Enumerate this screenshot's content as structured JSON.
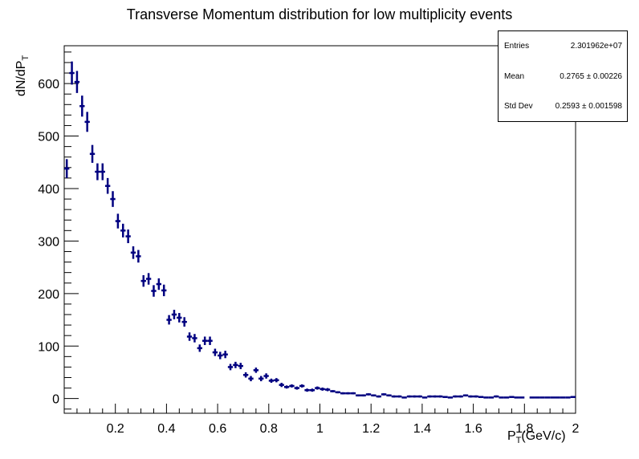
{
  "chart_data": {
    "type": "histogram",
    "title": "Transverse Momentum distribution for low multiplicity events",
    "xlabel": {
      "prefix": "P",
      "sub": "T",
      "suffix": "(GeV/c)"
    },
    "ylabel": {
      "prefix": "dN/dP",
      "sub": "T"
    },
    "xlim": [
      0,
      2.0
    ],
    "ylim": [
      -28,
      672
    ],
    "xticks": [
      0.2,
      0.4,
      0.6,
      0.8,
      1.0,
      1.2,
      1.4,
      1.6,
      1.8,
      2.0
    ],
    "xtick_labels": [
      "0.2",
      "0.4",
      "0.6",
      "0.8",
      "1",
      "1.2",
      "1.4",
      "1.6",
      "1.8",
      "2"
    ],
    "yticks": [
      0,
      100,
      200,
      300,
      400,
      500,
      600
    ],
    "ytick_labels": [
      "0",
      "100",
      "200",
      "300",
      "400",
      "500",
      "600"
    ],
    "bin_width": 0.02,
    "x": [
      0.01,
      0.03,
      0.05,
      0.07,
      0.09,
      0.11,
      0.13,
      0.15,
      0.17,
      0.19,
      0.21,
      0.23,
      0.25,
      0.27,
      0.29,
      0.31,
      0.33,
      0.35,
      0.37,
      0.39,
      0.41,
      0.43,
      0.45,
      0.47,
      0.49,
      0.51,
      0.53,
      0.55,
      0.57,
      0.59,
      0.61,
      0.63,
      0.65,
      0.67,
      0.69,
      0.71,
      0.73,
      0.75,
      0.77,
      0.79,
      0.81,
      0.83,
      0.85,
      0.87,
      0.89,
      0.91,
      0.93,
      0.95,
      0.97,
      0.99,
      1.01,
      1.03,
      1.05,
      1.07,
      1.09,
      1.11,
      1.13,
      1.15,
      1.17,
      1.19,
      1.21,
      1.23,
      1.25,
      1.27,
      1.29,
      1.31,
      1.33,
      1.35,
      1.37,
      1.39,
      1.41,
      1.43,
      1.45,
      1.47,
      1.49,
      1.51,
      1.53,
      1.55,
      1.57,
      1.59,
      1.61,
      1.63,
      1.65,
      1.67,
      1.69,
      1.71,
      1.73,
      1.75,
      1.77,
      1.79,
      1.81,
      1.83,
      1.85,
      1.87,
      1.89,
      1.91,
      1.93,
      1.95,
      1.97,
      1.99
    ],
    "values": [
      438,
      620,
      603,
      557,
      527,
      466,
      432,
      432,
      405,
      380,
      338,
      320,
      309,
      278,
      271,
      224,
      228,
      205,
      218,
      206,
      150,
      160,
      154,
      146,
      118,
      115,
      96,
      110,
      110,
      88,
      82,
      84,
      60,
      64,
      62,
      45,
      38,
      54,
      38,
      43,
      34,
      35,
      26,
      22,
      24,
      20,
      24,
      16,
      16,
      20,
      18,
      17,
      14,
      12,
      10,
      10,
      10,
      6,
      6,
      8,
      6,
      4,
      8,
      6,
      4,
      4,
      2,
      4,
      4,
      4,
      2,
      4,
      4,
      4,
      3,
      2,
      4,
      4,
      6,
      4,
      4,
      3,
      2,
      2,
      4,
      2,
      2,
      3,
      2,
      2,
      0,
      2,
      2,
      2,
      2,
      2,
      2,
      2,
      2,
      3
    ],
    "errors": [
      18,
      22,
      21,
      20,
      19,
      17,
      16,
      16,
      15,
      15,
      14,
      13,
      13,
      12,
      12,
      11,
      11,
      11,
      11,
      11,
      9,
      9,
      9,
      9,
      8,
      8,
      7,
      8,
      8,
      7,
      7,
      7,
      6,
      6,
      6,
      5,
      5,
      5,
      5,
      5,
      4,
      4,
      4,
      3,
      3,
      3,
      3,
      3,
      3,
      3,
      3,
      3,
      2,
      2,
      2,
      2,
      2,
      2,
      2,
      2,
      2,
      2,
      2,
      2,
      2,
      2,
      1,
      2,
      2,
      2,
      1,
      2,
      2,
      2,
      1,
      1,
      2,
      2,
      2,
      2,
      2,
      1,
      1,
      1,
      2,
      1,
      1,
      1,
      1,
      1,
      0,
      1,
      1,
      1,
      1,
      1,
      1,
      1,
      1,
      1
    ],
    "color": "#000080",
    "stats": [
      {
        "key": "Entries",
        "value": "2.301962e+07"
      },
      {
        "key": "Mean",
        "value": "0.2765 ± 0.00226"
      },
      {
        "key": "Std Dev",
        "value": "0.2593 ± 0.001598"
      }
    ]
  }
}
